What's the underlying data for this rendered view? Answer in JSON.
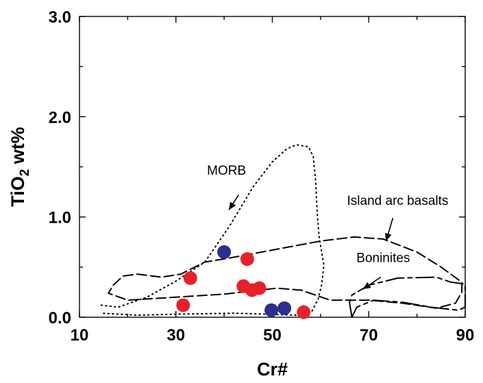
{
  "chart_data": {
    "type": "scatter",
    "title": "",
    "xlabel": "Cr#",
    "ylabel": {
      "prefix": "TiO",
      "subscript": "2",
      "suffix": " wt%"
    },
    "xlim": [
      10,
      90
    ],
    "ylim": [
      0,
      3
    ],
    "x_ticks": [
      10,
      30,
      50,
      70,
      90
    ],
    "y_ticks": [
      0.0,
      1.0,
      2.0,
      3.0
    ],
    "x_tick_labels": [
      "10",
      "30",
      "50",
      "70",
      "90"
    ],
    "y_tick_labels": [
      "0.0",
      "1.0",
      "2.0",
      "3.0"
    ],
    "grid": false,
    "series": [
      {
        "color": "#e8202a",
        "points": [
          {
            "x": 31.5,
            "y": 0.12
          },
          {
            "x": 33,
            "y": 0.39
          },
          {
            "x": 44,
            "y": 0.31
          },
          {
            "x": 44.8,
            "y": 0.58
          },
          {
            "x": 45.8,
            "y": 0.27
          },
          {
            "x": 47.3,
            "y": 0.29
          },
          {
            "x": 56.5,
            "y": 0.05
          }
        ]
      },
      {
        "color": "#2b2f8f",
        "points": [
          {
            "x": 40,
            "y": 0.65
          },
          {
            "x": 49.8,
            "y": 0.07
          },
          {
            "x": 52.5,
            "y": 0.09
          }
        ]
      }
    ],
    "fields": [
      {
        "label": "MORB",
        "style": "dotted",
        "polygon": [
          [
            14.5,
            0.12
          ],
          [
            18,
            0.1
          ],
          [
            24,
            0.2
          ],
          [
            30,
            0.36
          ],
          [
            36,
            0.55
          ],
          [
            41,
            0.9
          ],
          [
            46,
            1.3
          ],
          [
            50,
            1.55
          ],
          [
            53,
            1.68
          ],
          [
            55,
            1.72
          ],
          [
            57.5,
            1.7
          ],
          [
            58.5,
            1.6
          ],
          [
            59,
            1.35
          ],
          [
            59.3,
            1.05
          ],
          [
            59.7,
            0.8
          ],
          [
            60.7,
            0.52
          ],
          [
            60.2,
            0.32
          ],
          [
            59.5,
            0.18
          ],
          [
            58.2,
            0.06
          ],
          [
            55,
            0.02
          ],
          [
            49,
            0.03
          ],
          [
            42,
            0.04
          ],
          [
            30,
            0.03
          ],
          [
            22,
            0.02
          ],
          [
            14.5,
            0.04
          ]
        ],
        "label_pos": [
          40.5,
          1.42
        ],
        "arrow_from": [
          43,
          1.22
        ],
        "arrow_to": [
          41,
          1.07
        ]
      },
      {
        "label": "Island arc basalts",
        "style": "dashed",
        "polygon": [
          [
            17,
            0.32
          ],
          [
            19,
            0.41
          ],
          [
            22,
            0.43
          ],
          [
            27,
            0.4
          ],
          [
            31,
            0.43
          ],
          [
            36,
            0.55
          ],
          [
            41,
            0.59
          ],
          [
            50,
            0.67
          ],
          [
            60,
            0.76
          ],
          [
            67,
            0.8
          ],
          [
            73,
            0.78
          ],
          [
            80,
            0.65
          ],
          [
            85,
            0.5
          ],
          [
            89.3,
            0.35
          ],
          [
            89.3,
            0.25
          ],
          [
            88,
            0.14
          ],
          [
            84,
            0.09
          ],
          [
            77,
            0.14
          ],
          [
            70,
            0.17
          ],
          [
            62,
            0.17
          ],
          [
            56,
            0.27
          ],
          [
            51,
            0.29
          ],
          [
            40,
            0.23
          ],
          [
            30,
            0.2
          ],
          [
            20,
            0.17
          ],
          [
            16,
            0.24
          ],
          [
            17,
            0.32
          ]
        ],
        "label_pos": [
          76,
          1.12
        ],
        "arrow_from": [
          75,
          0.99
        ],
        "arrow_to": [
          73.6,
          0.76
        ]
      },
      {
        "label": "Boninites",
        "style": "dash-dot",
        "polygon": [
          [
            66.5,
            0.0
          ],
          [
            66,
            0.15
          ],
          [
            66.5,
            0.22
          ],
          [
            70,
            0.32
          ],
          [
            76,
            0.39
          ],
          [
            84,
            0.4
          ],
          [
            87,
            0.35
          ],
          [
            90,
            0.33
          ],
          [
            90,
            0.1
          ],
          [
            88.5,
            0.07
          ],
          [
            83,
            0.1
          ],
          [
            77,
            0.15
          ],
          [
            71,
            0.17
          ],
          [
            67.5,
            0.1
          ],
          [
            66.5,
            0.0
          ]
        ],
        "label_pos": [
          73,
          0.55
        ],
        "arrow_from": [
          72.5,
          0.4
        ],
        "arrow_to": [
          68.8,
          0.28
        ]
      }
    ]
  }
}
